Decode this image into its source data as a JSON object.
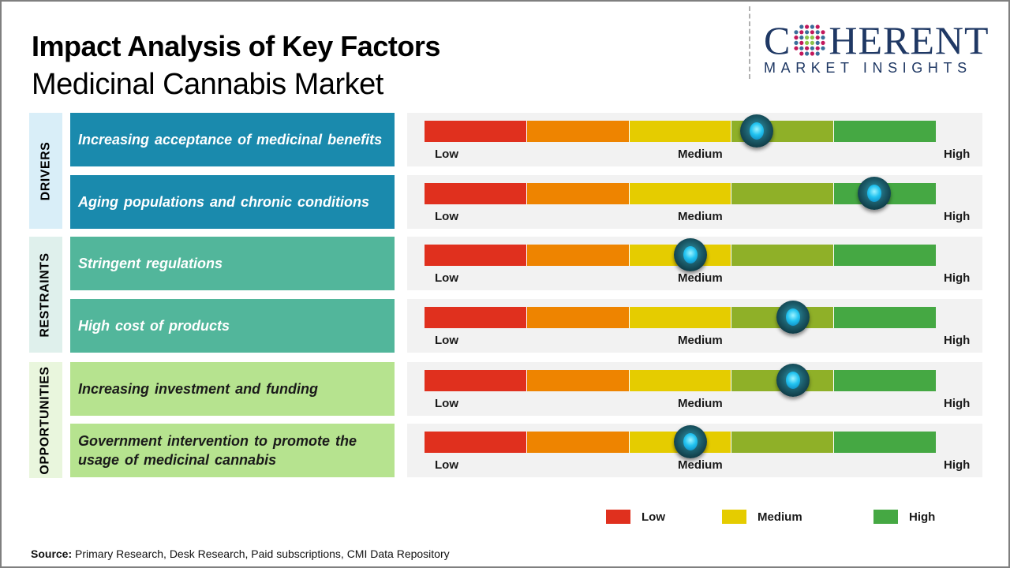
{
  "header": {
    "title": "Impact Analysis of Key Factors",
    "subtitle": "Medicinal Cannabis Market"
  },
  "logo": {
    "main_left": "C",
    "main_right": "HERENT",
    "sub": "MARKET INSIGHTS"
  },
  "scale_labels": {
    "low": "Low",
    "medium": "Medium",
    "high": "High"
  },
  "segment_colors": [
    "#e0301e",
    "#ee8400",
    "#e5cc00",
    "#8fb028",
    "#45a843"
  ],
  "groups": [
    {
      "label": "DRIVERS",
      "color": "#1a8aad",
      "factors": [
        {
          "text": "Increasing acceptance of medicinal benefits",
          "impact": 0.65
        },
        {
          "text": "Aging populations and chronic conditions",
          "impact": 0.88
        }
      ]
    },
    {
      "label": "RESTRAINTS",
      "color": "#52b69b",
      "factors": [
        {
          "text": "Stringent regulations",
          "impact": 0.52
        },
        {
          "text": "High cost of products",
          "impact": 0.72
        }
      ]
    },
    {
      "label": "OPPORTUNITIES",
      "color": "#b6e38f",
      "factors": [
        {
          "text": "Increasing investment and funding",
          "impact": 0.72
        },
        {
          "text": "Government intervention to promote the usage of medicinal cannabis",
          "impact": 0.52
        }
      ]
    }
  ],
  "legend": [
    {
      "label": "Low",
      "color": "#e0301e"
    },
    {
      "label": "Medium",
      "color": "#e5cc00"
    },
    {
      "label": "High",
      "color": "#45a843"
    }
  ],
  "source": {
    "prefix": "Source:",
    "text": " Primary Research, Desk Research, Paid subscriptions, CMI Data Repository"
  },
  "chart_data": {
    "type": "table",
    "title": "Impact Analysis of Key Factors - Medicinal Cannabis Market",
    "scale": [
      "Low",
      "Medium",
      "High"
    ],
    "rows": [
      {
        "group": "DRIVERS",
        "factor": "Increasing acceptance of medicinal benefits",
        "impact": 0.65
      },
      {
        "group": "DRIVERS",
        "factor": "Aging populations and chronic conditions",
        "impact": 0.88
      },
      {
        "group": "RESTRAINTS",
        "factor": "Stringent regulations",
        "impact": 0.52
      },
      {
        "group": "RESTRAINTS",
        "factor": "High cost of products",
        "impact": 0.72
      },
      {
        "group": "OPPORTUNITIES",
        "factor": "Increasing investment and funding",
        "impact": 0.72
      },
      {
        "group": "OPPORTUNITIES",
        "factor": "Government intervention to promote the usage of medicinal cannabis",
        "impact": 0.52
      }
    ]
  }
}
